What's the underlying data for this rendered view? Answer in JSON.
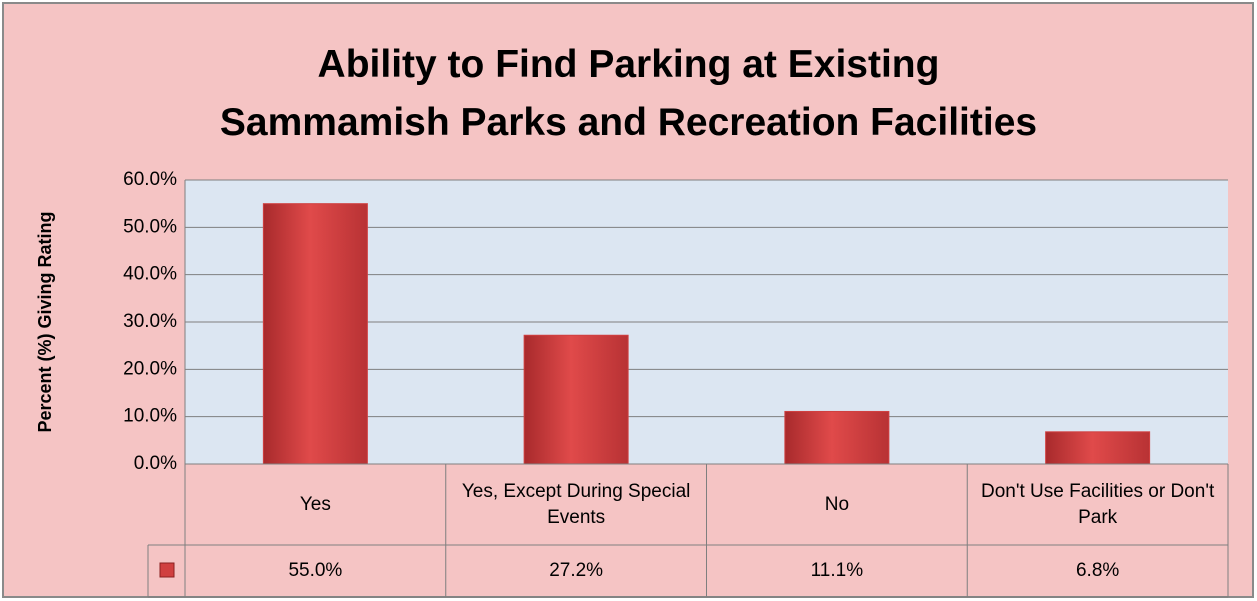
{
  "chart_data": {
    "type": "bar",
    "title": "Ability to Find Parking at Existing Sammamish Parks and Recreation Facilities",
    "y_label": "Percent (%) Giving Rating",
    "categories": [
      "Yes",
      "Yes, Except During Special Events",
      "No",
      "Don't Use Facilities or Don't Park"
    ],
    "values": [
      55.0,
      27.2,
      11.1,
      6.8
    ],
    "value_labels": [
      "55.0%",
      "27.2%",
      "11.1%",
      "6.8%"
    ],
    "color": "#d04040",
    "ylim": [
      0,
      60
    ],
    "yticks": [
      {
        "value": 0,
        "label": "0.0%"
      },
      {
        "value": 10,
        "label": "10.0%"
      },
      {
        "value": 20,
        "label": "20.0%"
      },
      {
        "value": 30,
        "label": "30.0%"
      },
      {
        "value": 40,
        "label": "40.0%"
      },
      {
        "value": 50,
        "label": "50.0%"
      },
      {
        "value": 60,
        "label": "60.0%"
      }
    ],
    "grid": true
  }
}
